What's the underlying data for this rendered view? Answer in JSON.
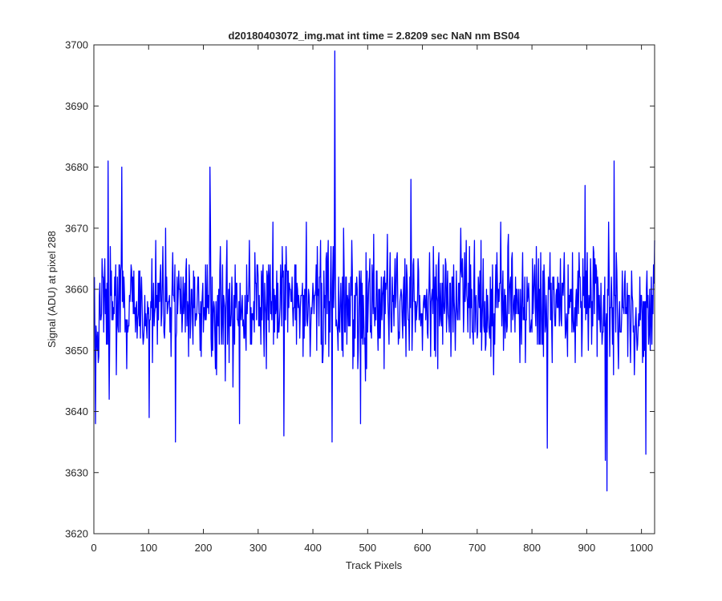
{
  "chart_data": {
    "type": "line",
    "title": "d20180403072_img.mat int time = 2.8209 sec  NaN nm BS04",
    "xlabel": "Track Pixels",
    "ylabel": "Signal (ADU) at pixel 288",
    "xlim": [
      0,
      1024
    ],
    "ylim": [
      3620,
      3700
    ],
    "xticks": [
      "0",
      "100",
      "200",
      "300",
      "400",
      "500",
      "600",
      "700",
      "800",
      "900",
      "1000"
    ],
    "yticks": [
      "3620",
      "3630",
      "3640",
      "3650",
      "3660",
      "3670",
      "3680",
      "3690",
      "3700"
    ],
    "grid": false,
    "box": true,
    "series": [
      {
        "color": "#0000ff",
        "n_points": 1024,
        "mean": 3657.5,
        "noise_range": [
          3638,
          3677
        ],
        "spikes": [
          {
            "x": 3,
            "y": 3638
          },
          {
            "x": 26,
            "y": 3681
          },
          {
            "x": 28,
            "y": 3642
          },
          {
            "x": 51,
            "y": 3680
          },
          {
            "x": 101,
            "y": 3639
          },
          {
            "x": 149,
            "y": 3635
          },
          {
            "x": 212,
            "y": 3680
          },
          {
            "x": 266,
            "y": 3638
          },
          {
            "x": 347,
            "y": 3636
          },
          {
            "x": 435,
            "y": 3635
          },
          {
            "x": 440,
            "y": 3699
          },
          {
            "x": 487,
            "y": 3638
          },
          {
            "x": 579,
            "y": 3678
          },
          {
            "x": 828,
            "y": 3634
          },
          {
            "x": 897,
            "y": 3677
          },
          {
            "x": 934,
            "y": 3632
          },
          {
            "x": 937,
            "y": 3627
          },
          {
            "x": 950,
            "y": 3681
          },
          {
            "x": 1008,
            "y": 3633
          }
        ]
      }
    ]
  }
}
